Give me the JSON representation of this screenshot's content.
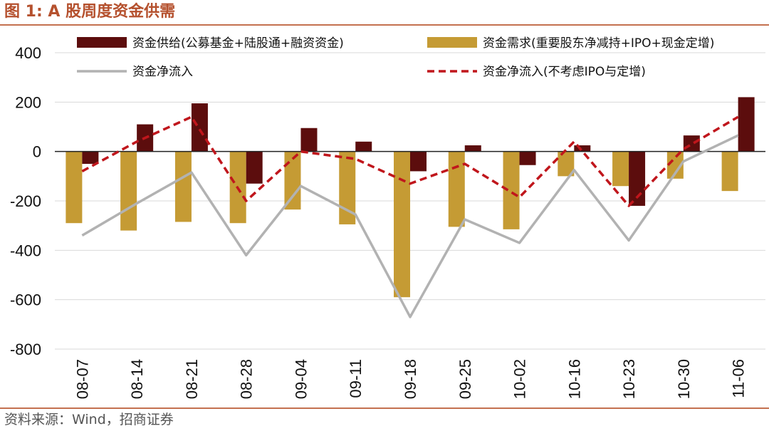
{
  "figure_title": "图 1:  A 股周度资金供需",
  "source": "资料来源：Wind，招商证券",
  "colors": {
    "supply": "#5c0d0d",
    "demand": "#c59b34",
    "net": "#b2b2b2",
    "net_excl": "#c0161c",
    "accent": "#b5512e"
  },
  "chart_data": {
    "type": "bar",
    "title": "A 股周度资金供需",
    "xlabel": "",
    "ylabel": "",
    "ylim": [
      -800,
      400
    ],
    "yticks": [
      400,
      200,
      0,
      -200,
      -400,
      -600,
      -800
    ],
    "grid": "horizontal",
    "legend_position": "top",
    "categories": [
      "08-07",
      "08-14",
      "08-21",
      "08-28",
      "09-04",
      "09-11",
      "09-18",
      "09-25",
      "10-02",
      "10-16",
      "10-23",
      "10-30",
      "11-06"
    ],
    "series": [
      {
        "name": "资金供给(公募基金+陆股通+融资资金)",
        "kind": "bar",
        "values": [
          -50,
          110,
          195,
          -130,
          95,
          40,
          -80,
          25,
          -55,
          25,
          -220,
          65,
          220
        ]
      },
      {
        "name": "资金需求(重要股东净减持+IPO+现金定增)",
        "kind": "bar",
        "values": [
          -290,
          -320,
          -285,
          -290,
          -235,
          -295,
          -590,
          -305,
          -315,
          -100,
          -140,
          -110,
          -160
        ]
      },
      {
        "name": "资金净流入",
        "kind": "line",
        "values": [
          -340,
          -210,
          -85,
          -420,
          -140,
          -255,
          -670,
          -275,
          -370,
          -75,
          -360,
          -40,
          65
        ]
      },
      {
        "name": "资金净流入(不考虑IPO与定增)",
        "kind": "dashed-line",
        "values": [
          -80,
          40,
          140,
          -200,
          0,
          -30,
          -130,
          -50,
          -185,
          40,
          -220,
          10,
          140
        ]
      }
    ]
  }
}
